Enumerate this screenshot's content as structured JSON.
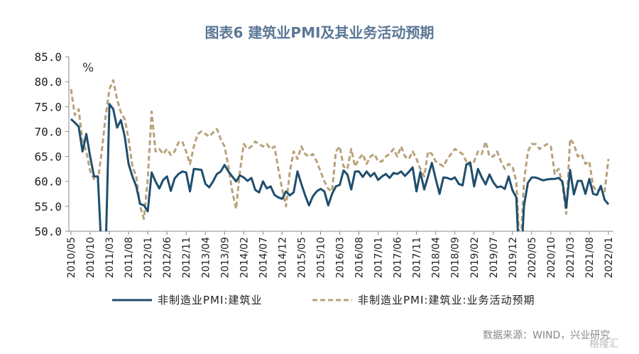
{
  "chart_data": {
    "type": "line",
    "title": "图表6  建筑业PMI及其业务活动预期",
    "ylabel": "%",
    "xlabel": "",
    "ylim": [
      50,
      85
    ],
    "yticks": [
      "85.0",
      "80.0",
      "75.0",
      "70.0",
      "65.0",
      "60.0",
      "55.0",
      "50.0"
    ],
    "ytick_values": [
      85,
      80,
      75,
      70,
      65,
      60,
      55,
      50
    ],
    "start": "2010/05",
    "xtick_step_months": 5,
    "xticks": [
      "2010/05",
      "2010/10",
      "2011/03",
      "2011/08",
      "2012/01",
      "2012/06",
      "2012/11",
      "2013/04",
      "2013/09",
      "2014/02",
      "2014/07",
      "2014/12",
      "2015/05",
      "2015/10",
      "2016/03",
      "2016/08",
      "2017/01",
      "2017/06",
      "2017/11",
      "2018/04",
      "2018/09",
      "2019/02",
      "2019/07",
      "2019/12",
      "2020/05",
      "2020/10",
      "2021/03",
      "2021/08",
      "2022/01"
    ],
    "grid": false,
    "legend_position": "bottom",
    "series": [
      {
        "name": "非制造业PMI:建筑业",
        "color": "#1f4e6e",
        "style": "solid",
        "values": [
          72.5,
          71.8,
          71,
          66,
          69.5,
          65,
          61,
          61,
          45,
          45,
          75.5,
          74.5,
          70.8,
          72.3,
          69,
          63.5,
          61,
          59,
          55.5,
          55.2,
          54,
          61.8,
          60,
          58.6,
          60.3,
          61,
          58.1,
          60.6,
          61.5,
          62,
          61.8,
          58,
          62.5,
          62.4,
          62.3,
          59.5,
          58.8,
          60,
          61.5,
          62,
          63.3,
          62,
          61,
          60,
          61.2,
          60.8,
          60.1,
          60.7,
          58.3,
          57.8,
          60,
          58.6,
          59,
          57.3,
          56.8,
          56.5,
          58,
          57.2,
          57.8,
          62,
          59.5,
          57.2,
          55.2,
          57,
          58,
          58.5,
          58,
          55.2,
          57.5,
          59,
          59.3,
          62.2,
          61.4,
          58.4,
          62,
          62,
          60.9,
          62,
          61,
          61.7,
          60.3,
          61,
          61.5,
          60.7,
          61.7,
          61.5,
          62,
          61.1,
          61.9,
          62.8,
          58,
          61.9,
          58.4,
          61,
          63.7,
          60.5,
          57.5,
          60.8,
          60.7,
          60.4,
          60.8,
          59.5,
          59.2,
          63.4,
          63.8,
          59,
          62.5,
          60.8,
          59.4,
          61.4,
          59.8,
          58.8,
          59,
          58.5,
          61,
          58.2,
          56.8,
          40,
          55.1,
          59.7,
          60.8,
          60.8,
          60.5,
          60.2,
          60.4,
          60.5,
          60.5,
          60.7,
          60,
          54.7,
          62.3,
          57.4,
          60.1,
          60.1,
          57.5,
          60.5,
          57.5,
          57.3,
          59.1,
          56.3,
          55.4
        ]
      },
      {
        "name": "非制造业PMI:建筑业:业务活动预期",
        "color": "#b8a27a",
        "style": "dashed",
        "values": [
          78.5,
          73.3,
          74.5,
          68,
          66,
          62,
          60.5,
          60,
          66,
          73,
          78.5,
          80.3,
          76.5,
          73.8,
          72.5,
          68.5,
          63,
          61,
          55,
          52.5,
          60.5,
          74,
          66,
          66.5,
          65.5,
          66.5,
          65.3,
          66,
          67.8,
          68,
          66,
          63.5,
          67,
          69.5,
          70,
          69.5,
          69,
          69.8,
          70.5,
          68.5,
          67,
          63,
          58,
          54.5,
          62,
          67.5,
          66.5,
          67,
          68,
          67.5,
          67,
          67.5,
          66.5,
          67,
          62.5,
          58.5,
          55,
          62,
          66,
          64.5,
          67,
          65.5,
          65,
          65.5,
          64,
          62,
          60,
          58.5,
          58,
          66,
          67,
          63,
          62.5,
          66.5,
          63,
          64.5,
          65.5,
          63.5,
          65,
          65.5,
          64,
          64,
          65,
          65.5,
          66.5,
          65,
          67,
          65,
          64.5,
          66,
          64.5,
          62.5,
          61,
          66,
          65.5,
          64,
          63.5,
          63,
          64.5,
          65.5,
          66.5,
          66,
          65.5,
          64,
          63,
          64,
          66,
          65.5,
          68,
          65,
          65,
          66,
          64,
          62.5,
          63.5,
          63,
          60,
          45,
          60,
          66,
          67.5,
          67.5,
          66.5,
          67,
          67.5,
          67,
          61.5,
          62.5,
          59.5,
          53.5,
          68.5,
          67.5,
          65,
          65.5,
          63.5,
          64,
          59,
          58,
          58.5,
          58,
          64.5
        ]
      }
    ]
  },
  "legend": {
    "item1": "非制造业PMI:建筑业",
    "item2": "非制造业PMI:建筑业:业务活动预期"
  },
  "source": "数据来源：WIND，兴业研究",
  "watermark": "格隆汇"
}
